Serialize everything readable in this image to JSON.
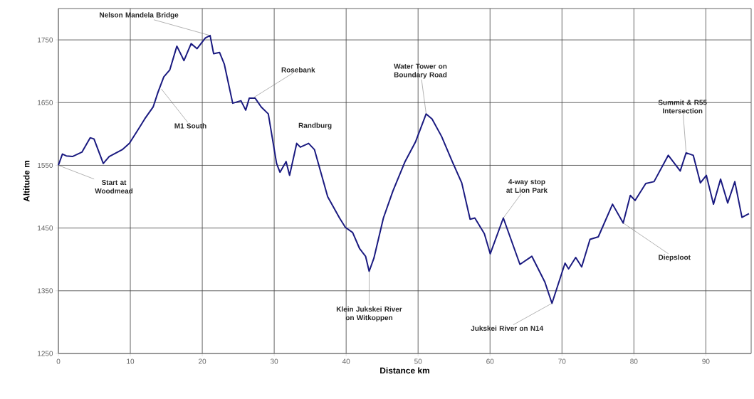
{
  "chart_data": {
    "type": "line",
    "xlabel": "Distance km",
    "ylabel": "Altitude m",
    "x": [
      0,
      0.56,
      1.1,
      1.95,
      3.27,
      4.42,
      4.95,
      6.24,
      7.06,
      8.88,
      9.87,
      11.19,
      12.0,
      13.17,
      13.83,
      14.65,
      15.48,
      16.47,
      17.46,
      18.45,
      19.28,
      20.43,
      21.09,
      21.58,
      22.4,
      23.07,
      24.23,
      25.38,
      26.04,
      26.53,
      27.36,
      28.2,
      29.18,
      30.33,
      30.8,
      31.65,
      32.14,
      33.13,
      33.63,
      34.78,
      35.6,
      37.43,
      39.08,
      39.9,
      40.9,
      41.88,
      42.7,
      43.2,
      43.86,
      45.18,
      46.5,
      48.15,
      49.63,
      51.12,
      51.94,
      53.27,
      54.75,
      56.07,
      57.23,
      57.89,
      59.21,
      60.03,
      61.85,
      64.16,
      65.81,
      67.62,
      68.61,
      70.43,
      70.92,
      71.91,
      72.74,
      73.9,
      75.05,
      77.03,
      78.51,
      79.5,
      80.17,
      81.65,
      82.8,
      84.78,
      86.44,
      87.26,
      88.25,
      89.24,
      90.07,
      91.06,
      92.05,
      93.04,
      94.03,
      95.02,
      96.0
    ],
    "series": [
      {
        "color": "#1a1a80",
        "values": [
          1550,
          1568,
          1565,
          1564,
          1571,
          1594,
          1592,
          1553,
          1564,
          1575,
          1585,
          1609,
          1624,
          1643,
          1666,
          1691,
          1702,
          1740,
          1717,
          1744,
          1736,
          1753,
          1757,
          1728,
          1730,
          1711,
          1649,
          1653,
          1638,
          1657,
          1657,
          1643,
          1632,
          1553,
          1539,
          1556,
          1534,
          1585,
          1579,
          1585,
          1575,
          1500,
          1466,
          1451,
          1443,
          1417,
          1405,
          1381,
          1402,
          1466,
          1509,
          1555,
          1587,
          1632,
          1624,
          1596,
          1556,
          1522,
          1464,
          1466,
          1441,
          1409,
          1466,
          1392,
          1405,
          1364,
          1330,
          1394,
          1385,
          1403,
          1388,
          1432,
          1436,
          1488,
          1458,
          1502,
          1494,
          1521,
          1524,
          1566,
          1541,
          1570,
          1566,
          1522,
          1534,
          1488,
          1528,
          1490,
          1524,
          1467,
          1473
        ]
      }
    ],
    "xlim": [
      0,
      96.3
    ],
    "ylim": [
      1250,
      1800
    ],
    "xticks": [
      0,
      10,
      20,
      30,
      40,
      50,
      60,
      70,
      80,
      90
    ],
    "yticks": [
      1250,
      1350,
      1450,
      1550,
      1650,
      1750
    ],
    "grid": true,
    "annotations": [
      {
        "text": "Nelson Mandela Bridge",
        "x": 21.09,
        "y": 1757
      },
      {
        "text": "M1 South",
        "x": 14.3,
        "y": 1672
      },
      {
        "text": "Start at Woodmead",
        "x": 0,
        "y": 1550
      },
      {
        "text": "Rosebank",
        "x": 27.0,
        "y": 1657
      },
      {
        "text": "Randburg",
        "x": 34.5,
        "y": 1590
      },
      {
        "text": "Water Tower on Boundary Road",
        "x": 51.12,
        "y": 1632
      },
      {
        "text": "Klein Jukskei River on Witkoppen",
        "x": 43.2,
        "y": 1381
      },
      {
        "text": "4-way stop at Lion Park",
        "x": 61.85,
        "y": 1466
      },
      {
        "text": "Jukskei River on N14",
        "x": 68.61,
        "y": 1330
      },
      {
        "text": "Diepsloot",
        "x": 78.51,
        "y": 1458
      },
      {
        "text": "Summit & R55 Intersection",
        "x": 87.26,
        "y": 1570
      }
    ]
  }
}
